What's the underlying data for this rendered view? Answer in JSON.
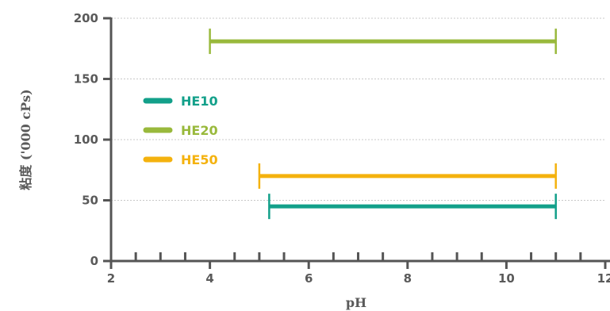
{
  "chart_data": {
    "type": "range-bar",
    "title": "",
    "xlabel": "pH",
    "ylabel": "粘度 ('000 cPs)",
    "xlim": [
      2,
      12
    ],
    "ylim": [
      0,
      200
    ],
    "xticks": [
      2,
      4,
      6,
      8,
      10,
      12
    ],
    "xticks_labels": [
      "2",
      "4",
      "6",
      "8",
      "10",
      "12"
    ],
    "x_minor_step": 0.5,
    "yticks": [
      0,
      50,
      100,
      150,
      200
    ],
    "yticks_labels": [
      "0",
      "50",
      "100",
      "150",
      "200"
    ],
    "grid": "horizontal dotted",
    "legend_position": "left",
    "series": [
      {
        "name": "HE10",
        "color": "#13a08a",
        "y": 45,
        "x_start": 5.2,
        "x_end": 11
      },
      {
        "name": "HE20",
        "color": "#99b93c",
        "y": 181,
        "x_start": 4,
        "x_end": 11
      },
      {
        "name": "HE50",
        "color": "#f4b20e",
        "y": 70,
        "x_start": 5,
        "x_end": 11
      }
    ]
  }
}
